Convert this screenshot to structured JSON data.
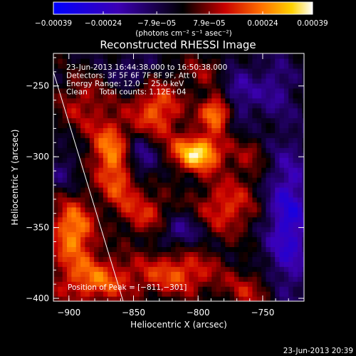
{
  "chart_data": {
    "type": "heatmap",
    "title": "Reconstructed RHESSI Image",
    "xlabel": "Heliocentric X (arcsec)",
    "ylabel": "Heliocentric Y (arcsec)",
    "xlim": [
      -912,
      -718
    ],
    "ylim": [
      -402,
      -227
    ],
    "x_ticks": [
      -900,
      -850,
      -800,
      -750
    ],
    "y_ticks": [
      -400,
      -350,
      -300,
      -250
    ],
    "x_tick_labels": [
      "−900",
      "−850",
      "−800",
      "−750"
    ],
    "y_tick_labels": [
      "−400",
      "−350",
      "−300",
      "−250"
    ],
    "colorbar": {
      "ticks": [
        -0.00039,
        -0.00024,
        -7.9e-05,
        7.9e-05,
        0.00024,
        0.00039
      ],
      "tick_labels": [
        "−0.00039",
        "−0.00024",
        "−7.9e−05",
        "7.9e−05",
        "0.00024",
        "0.00039"
      ],
      "units_label": "(photons cm⁻² s⁻¹ asec⁻²)",
      "range": [
        -0.00039,
        0.00039
      ]
    },
    "annotations": [
      "23-Jun-2013 16:44:38.000 to 16:50:38.000",
      "Detectors: 3F 5F 6F 7F 8F 9F, Att 0",
      "Energy Range: 12.0 − 25.0 keV",
      "Clean     Total counts: 1.12E+04"
    ],
    "peak_label": "Position of Peak = [−811,−301]",
    "peak_position": [
      -811,
      -301
    ],
    "limb_line": [
      [
        -912,
        -240
      ],
      [
        -858,
        -402
      ]
    ],
    "hotspots": [
      {
        "x": -800,
        "y": -297,
        "v": 0.00039,
        "sx": 14,
        "sy": 9
      },
      {
        "x": -785,
        "y": -268,
        "v": 0.00036,
        "sx": 9,
        "sy": 9
      },
      {
        "x": -832,
        "y": -267,
        "v": 0.00024,
        "sx": 14,
        "sy": 14
      },
      {
        "x": -868,
        "y": -295,
        "v": 0.00026,
        "sx": 11,
        "sy": 16
      },
      {
        "x": -897,
        "y": -352,
        "v": 0.0003,
        "sx": 12,
        "sy": 16
      },
      {
        "x": -880,
        "y": -387,
        "v": 0.00024,
        "sx": 22,
        "sy": 12
      },
      {
        "x": -815,
        "y": -382,
        "v": 0.00022,
        "sx": 22,
        "sy": 11
      },
      {
        "x": -778,
        "y": -335,
        "v": 0.0002,
        "sx": 16,
        "sy": 14
      },
      {
        "x": -840,
        "y": -340,
        "v": 0.00017,
        "sx": 14,
        "sy": 12
      },
      {
        "x": -760,
        "y": -395,
        "v": 0.00014,
        "sx": 14,
        "sy": 10
      },
      {
        "x": -860,
        "y": -320,
        "v": 0.00016,
        "sx": 10,
        "sy": 12
      },
      {
        "x": -890,
        "y": -262,
        "v": 0.00014,
        "sx": 14,
        "sy": 14
      },
      {
        "x": -790,
        "y": -240,
        "v": 0.00012,
        "sx": 16,
        "sy": 10
      },
      {
        "x": -760,
        "y": -300,
        "v": 0.0001,
        "sx": 10,
        "sy": 12
      },
      {
        "x": -845,
        "y": -300,
        "v": -0.00016,
        "sx": 9,
        "sy": 10
      },
      {
        "x": -815,
        "y": -352,
        "v": -0.00014,
        "sx": 12,
        "sy": 8
      },
      {
        "x": -772,
        "y": -255,
        "v": -0.00018,
        "sx": 12,
        "sy": 16
      },
      {
        "x": -730,
        "y": -345,
        "v": -0.00024,
        "sx": 12,
        "sy": 36
      },
      {
        "x": -740,
        "y": -250,
        "v": -0.00012,
        "sx": 10,
        "sy": 14
      },
      {
        "x": -905,
        "y": -310,
        "v": -8e-05,
        "sx": 8,
        "sy": 10
      },
      {
        "x": -850,
        "y": -240,
        "v": -0.0001,
        "sx": 10,
        "sy": 8
      }
    ]
  },
  "footer": {
    "timestamp": "23-Jun-2013 20:39"
  }
}
